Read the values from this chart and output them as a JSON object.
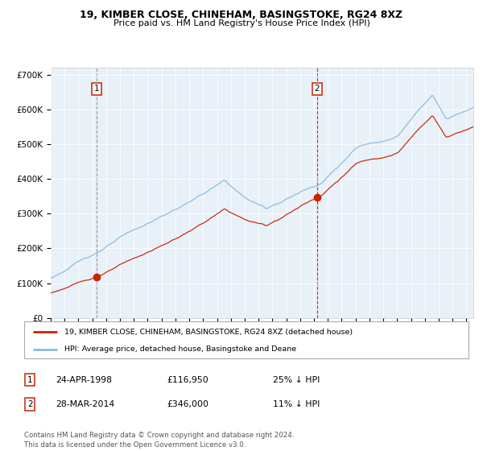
{
  "title1": "19, KIMBER CLOSE, CHINEHAM, BASINGSTOKE, RG24 8XZ",
  "title2": "Price paid vs. HM Land Registry's House Price Index (HPI)",
  "legend_line1": "19, KIMBER CLOSE, CHINEHAM, BASINGSTOKE, RG24 8XZ (detached house)",
  "legend_line2": "HPI: Average price, detached house, Basingstoke and Deane",
  "transaction1_date": "24-APR-1998",
  "transaction1_price": "£116,950",
  "transaction1_hpi": "25% ↓ HPI",
  "transaction2_date": "28-MAR-2014",
  "transaction2_price": "£346,000",
  "transaction2_hpi": "11% ↓ HPI",
  "footer": "Contains HM Land Registry data © Crown copyright and database right 2024.\nThis data is licensed under the Open Government Licence v3.0.",
  "vline1_x": 1998.29,
  "vline2_x": 2014.22,
  "point1_x": 1998.29,
  "point1_y": 116950,
  "point2_x": 2014.22,
  "point2_y": 346000,
  "ylim": [
    0,
    720000
  ],
  "xlim_start": 1995.0,
  "xlim_end": 2025.5,
  "hpi_color": "#88bbdd",
  "price_color": "#cc2200",
  "vline1_color": "#999999",
  "vline2_color": "#cc3300",
  "plot_bg": "#e8f0f8"
}
